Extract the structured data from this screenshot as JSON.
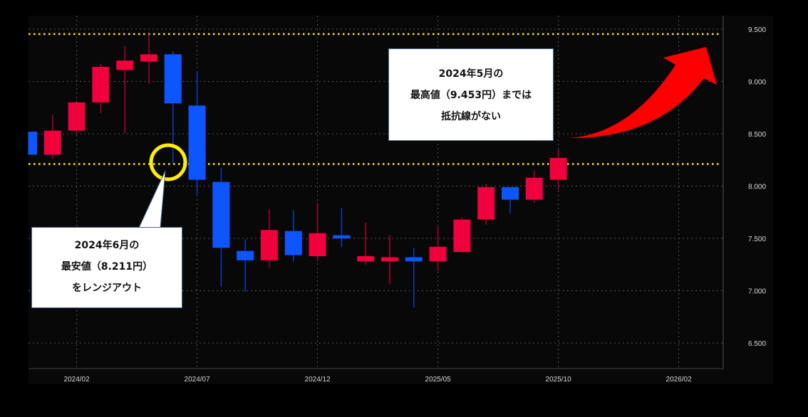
{
  "chart_data": {
    "type": "candlestick",
    "title": "",
    "xlabel": "",
    "ylabel": "",
    "ylim": [
      6.3,
      9.62
    ],
    "y_ticks": [
      "9.500",
      "9.000",
      "8.500",
      "8.000",
      "7.500",
      "7.000",
      "6.500"
    ],
    "y_tick_values": [
      9.5,
      9.0,
      8.5,
      8.0,
      7.5,
      7.0,
      6.5
    ],
    "x_ticks": [
      "2024/02",
      "2024/07",
      "2024/12",
      "2025/05",
      "2025/10",
      "2026/02"
    ],
    "x_tick_index": [
      2,
      7,
      12,
      17,
      22,
      27
    ],
    "grid": true,
    "up_color": "#f0003c",
    "down_color": "#0d55ff",
    "categories": [
      "2023/12",
      "2024/01",
      "2024/02",
      "2024/03",
      "2024/04",
      "2024/05",
      "2024/06",
      "2024/07",
      "2024/08",
      "2024/09",
      "2024/10",
      "2024/11",
      "2024/12",
      "2025/01",
      "2025/02",
      "2025/03",
      "2025/04",
      "2025/05",
      "2025/06",
      "2025/07",
      "2025/08",
      "2025/09",
      "2025/10"
    ],
    "ohlc": [
      [
        8.52,
        8.52,
        8.3,
        8.3
      ],
      [
        8.3,
        8.68,
        8.26,
        8.53
      ],
      [
        8.53,
        8.8,
        8.49,
        8.8
      ],
      [
        8.8,
        9.17,
        8.7,
        9.14
      ],
      [
        9.11,
        9.34,
        8.51,
        9.2
      ],
      [
        9.19,
        9.453,
        8.98,
        9.26
      ],
      [
        9.26,
        9.29,
        8.211,
        8.79
      ],
      [
        8.77,
        9.09,
        7.92,
        8.06
      ],
      [
        8.04,
        8.17,
        7.04,
        7.41
      ],
      [
        7.38,
        7.49,
        6.99,
        7.29
      ],
      [
        7.29,
        7.78,
        7.22,
        7.58
      ],
      [
        7.57,
        7.77,
        7.28,
        7.34
      ],
      [
        7.33,
        7.84,
        7.28,
        7.55
      ],
      [
        7.53,
        7.79,
        7.42,
        7.5
      ],
      [
        7.28,
        7.65,
        7.25,
        7.33
      ],
      [
        7.28,
        7.53,
        7.06,
        7.32
      ],
      [
        7.32,
        7.41,
        6.84,
        7.28
      ],
      [
        7.28,
        7.61,
        7.19,
        7.42
      ],
      [
        7.37,
        7.7,
        7.37,
        7.68
      ],
      [
        7.68,
        8.02,
        7.63,
        7.99
      ],
      [
        7.99,
        7.99,
        7.74,
        7.87
      ],
      [
        7.87,
        8.15,
        7.84,
        8.08
      ],
      [
        8.06,
        8.35,
        7.96,
        8.27
      ]
    ],
    "reference_lines": [
      {
        "value": 9.453,
        "color": "#ffee00",
        "style": "dotted"
      },
      {
        "value": 8.211,
        "color": "#ffee00",
        "style": "dotted"
      }
    ],
    "annotations": {
      "high_box": [
        "2024年5月の",
        "最高値（9.453円）までは",
        "抵抗線がない"
      ],
      "low_box": [
        "2024年6月の",
        "最安値（8.211円）",
        "をレンジアウト"
      ],
      "circle_color": "#ffee00",
      "arrow_color": "#ff0000"
    }
  }
}
